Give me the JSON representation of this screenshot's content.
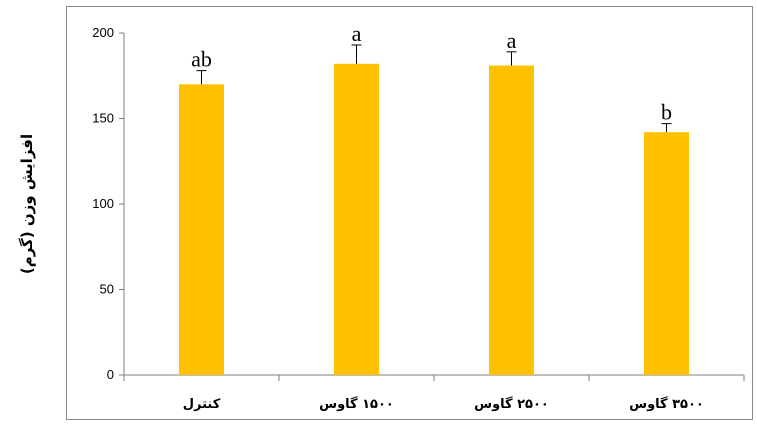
{
  "chart_data": {
    "type": "bar",
    "title": "",
    "xlabel": "",
    "ylabel": "افزایش وزن (گرم)",
    "ylim": [
      0,
      200
    ],
    "yticks": [
      "0",
      "50",
      "100",
      "150",
      "200"
    ],
    "categories": [
      "کنترل",
      "۱۵۰۰ گاوس",
      "۲۵۰۰ گاوس",
      "۳۵۰۰ گاوس"
    ],
    "values": [
      170,
      182,
      181,
      142
    ],
    "errors": [
      8,
      11,
      8,
      5
    ],
    "significance": [
      "ab",
      "a",
      "a",
      "b"
    ],
    "bar_color": "#FFC000",
    "grid": false,
    "legend": "none"
  }
}
